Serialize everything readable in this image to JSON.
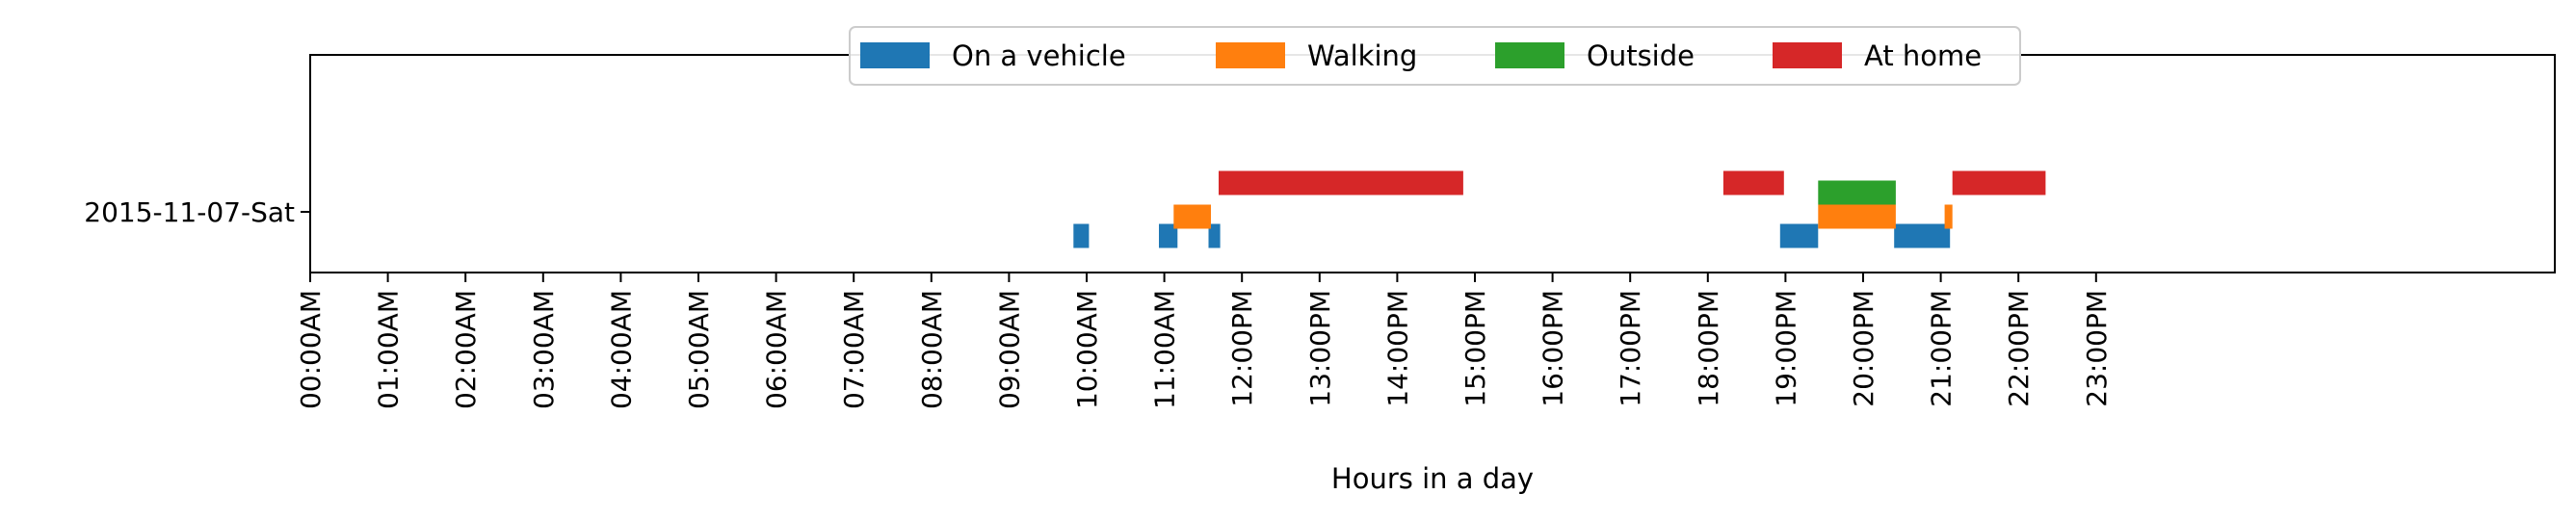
{
  "chart_data": {
    "type": "bar",
    "orientation": "horizontal-timeline",
    "title": "",
    "xlabel": "Hours in a day",
    "ylabel": "",
    "xlim": [
      0,
      24
    ],
    "y_categories": [
      "2015-11-07-Sat"
    ],
    "x_tick_labels": [
      "00:00AM",
      "01:00AM",
      "02:00AM",
      "03:00AM",
      "04:00AM",
      "05:00AM",
      "06:00AM",
      "07:00AM",
      "08:00AM",
      "09:00AM",
      "10:00AM",
      "11:00AM",
      "12:00PM",
      "13:00PM",
      "14:00PM",
      "15:00PM",
      "16:00PM",
      "17:00PM",
      "18:00PM",
      "19:00PM",
      "20:00PM",
      "21:00PM",
      "22:00PM",
      "23:00PM"
    ],
    "legend": {
      "placement": "top-center"
    },
    "grid": false,
    "series": [
      {
        "name": "On a vehicle",
        "color": "#1f77b4",
        "intervals": [
          [
            9.83,
            10.03
          ],
          [
            10.93,
            11.17
          ],
          [
            11.57,
            11.72
          ],
          [
            18.93,
            19.42
          ],
          [
            20.4,
            21.12
          ]
        ]
      },
      {
        "name": "Walking",
        "color": "#ff7f0e",
        "intervals": [
          [
            11.12,
            11.6
          ],
          [
            19.42,
            20.42
          ],
          [
            21.05,
            21.15
          ]
        ]
      },
      {
        "name": "Outside",
        "color": "#2ca02c",
        "intervals": [
          [
            19.42,
            20.42
          ]
        ]
      },
      {
        "name": "At home",
        "color": "#d62728",
        "intervals": [
          [
            11.7,
            14.85
          ],
          [
            18.2,
            18.98
          ],
          [
            21.15,
            22.35
          ]
        ]
      }
    ]
  }
}
